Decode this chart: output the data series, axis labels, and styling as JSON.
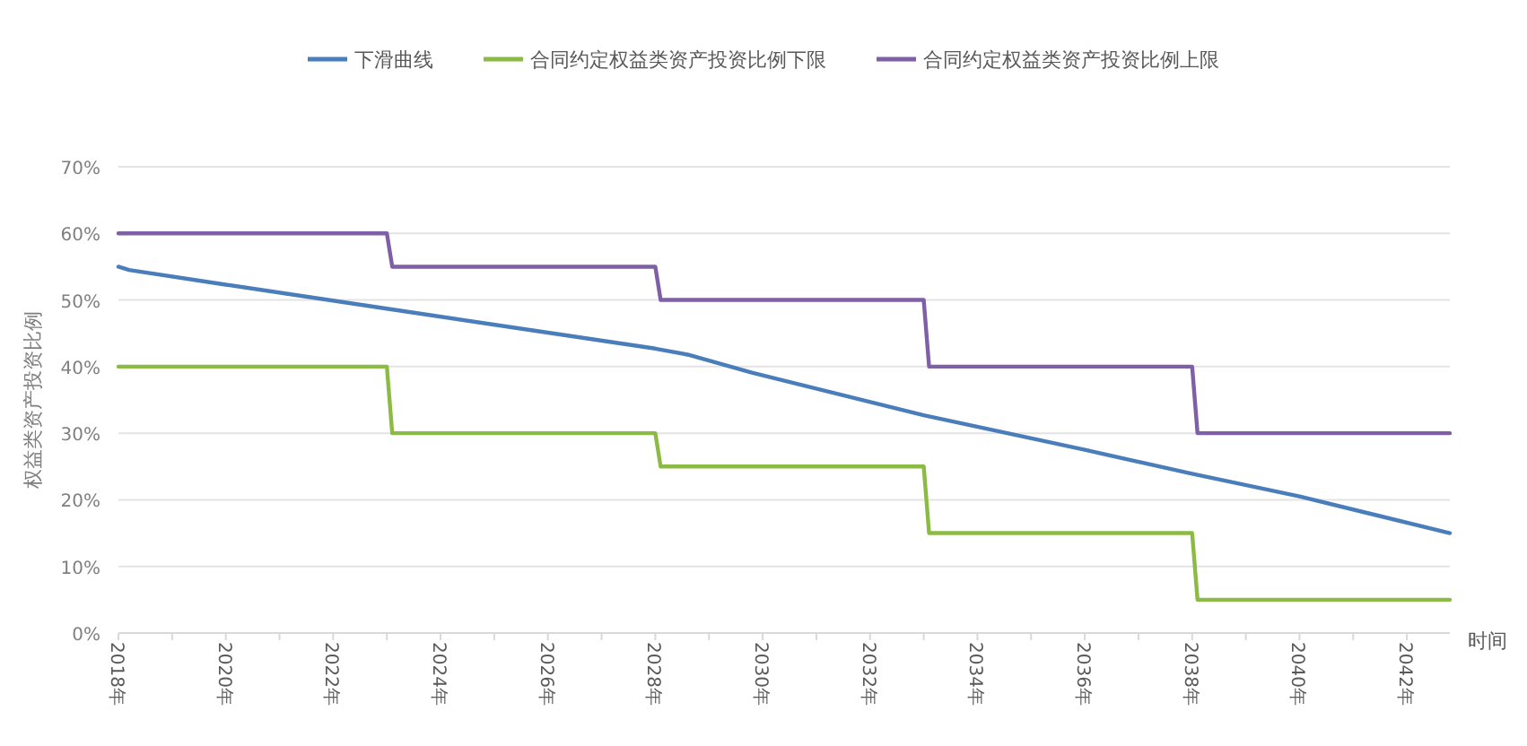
{
  "chart_data": {
    "type": "line",
    "xlabel": "时间",
    "ylabel": "权益类资产投资比例",
    "xlim": [
      2018,
      2042.8
    ],
    "ylim": [
      0,
      70
    ],
    "xticks": [
      {
        "value": 2018,
        "label": "2018年"
      },
      {
        "value": 2019,
        "label": null
      },
      {
        "value": 2020,
        "label": "2020年"
      },
      {
        "value": 2021,
        "label": null
      },
      {
        "value": 2022,
        "label": "2022年"
      },
      {
        "value": 2023,
        "label": null
      },
      {
        "value": 2024,
        "label": "2024年"
      },
      {
        "value": 2025,
        "label": null
      },
      {
        "value": 2026,
        "label": "2026年"
      },
      {
        "value": 2027,
        "label": null
      },
      {
        "value": 2028,
        "label": "2028年"
      },
      {
        "value": 2029,
        "label": null
      },
      {
        "value": 2030,
        "label": "2030年"
      },
      {
        "value": 2031,
        "label": null
      },
      {
        "value": 2032,
        "label": "2032年"
      },
      {
        "value": 2033,
        "label": null
      },
      {
        "value": 2034,
        "label": "2034年"
      },
      {
        "value": 2035,
        "label": null
      },
      {
        "value": 2036,
        "label": "2036年"
      },
      {
        "value": 2037,
        "label": null
      },
      {
        "value": 2038,
        "label": "2038年"
      },
      {
        "value": 2039,
        "label": null
      },
      {
        "value": 2040,
        "label": "2040年"
      },
      {
        "value": 2041,
        "label": null
      },
      {
        "value": 2042,
        "label": "2042年"
      }
    ],
    "yticks": [
      {
        "value": 0,
        "label": "0%"
      },
      {
        "value": 10,
        "label": "10%"
      },
      {
        "value": 20,
        "label": "20%"
      },
      {
        "value": 30,
        "label": "30%"
      },
      {
        "value": 40,
        "label": "40%"
      },
      {
        "value": 50,
        "label": "50%"
      },
      {
        "value": 60,
        "label": "60%"
      },
      {
        "value": 70,
        "label": "70%"
      }
    ],
    "grid": "y",
    "legend": "top",
    "series": [
      {
        "name": "下滑曲线",
        "color": "#4a7ebb",
        "x": [
          2018,
          2018.2,
          2020,
          2023,
          2026,
          2028,
          2028.6,
          2029.8,
          2033,
          2036,
          2038,
          2040,
          2042.8
        ],
        "values": [
          55,
          54.5,
          52.3,
          48.7,
          45.1,
          42.7,
          41.8,
          39.1,
          32.7,
          27.5,
          23.9,
          20.5,
          15
        ]
      },
      {
        "name": "合同约定权益类资产投资比例下限",
        "color": "#8cbb45",
        "x": [
          2018,
          2023,
          2023.1,
          2028,
          2028.1,
          2033,
          2033.1,
          2038,
          2038.1,
          2042.8
        ],
        "values": [
          40,
          40,
          30,
          30,
          25,
          25,
          15,
          15,
          5,
          5
        ]
      },
      {
        "name": "合同约定权益类资产投资比例上限",
        "color": "#7f5fa6",
        "x": [
          2018,
          2023,
          2023.1,
          2028,
          2028.1,
          2033,
          2033.1,
          2038,
          2038.1,
          2042.8
        ],
        "values": [
          60,
          60,
          55,
          55,
          50,
          50,
          40,
          40,
          30,
          30
        ]
      }
    ]
  }
}
